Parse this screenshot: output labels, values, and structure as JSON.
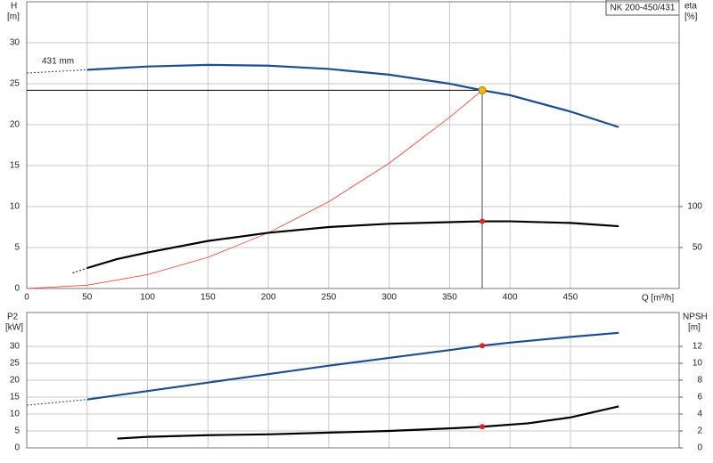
{
  "chart_data": [
    {
      "type": "line",
      "title": "NK 200-450/431",
      "annotation": "431 mm",
      "ylabel": [
        "H",
        "[m]"
      ],
      "y2label": [
        "eta",
        "[%]"
      ],
      "xlabel": "Q [m³/h]",
      "xlim": [
        0,
        540
      ],
      "xticks": [
        0,
        50,
        100,
        150,
        200,
        250,
        300,
        350,
        400,
        450
      ],
      "ylim": [
        0,
        35
      ],
      "yticks": [
        0,
        5,
        10,
        15,
        20,
        25,
        30
      ],
      "y2lim": [
        0,
        350
      ],
      "y2ticks": [
        50,
        100
      ],
      "grid": true,
      "series": [
        {
          "x": [
            0,
            50
          ],
          "values": [
            26.3,
            26.7
          ],
          "color": "#1f4e8c",
          "style": "dotted"
        },
        {
          "x": [
            50,
            100,
            150,
            200,
            250,
            300,
            350,
            377,
            400,
            450,
            490
          ],
          "values": [
            26.7,
            27.1,
            27.3,
            27.2,
            26.8,
            26.1,
            25.0,
            24.2,
            23.6,
            21.6,
            19.7
          ],
          "color": "#1f4e8c",
          "style": "solid"
        },
        {
          "x": [
            0,
            50,
            100,
            150,
            200,
            250,
            300,
            350,
            377
          ],
          "values": [
            0,
            0.4,
            1.7,
            3.8,
            6.8,
            10.6,
            15.3,
            20.9,
            24.2
          ],
          "color": "#ff3b30",
          "style": "thin"
        },
        {
          "x": [
            38,
            50
          ],
          "values": [
            19,
            25
          ],
          "color": "#000000",
          "style": "dotted",
          "axis": "y2"
        },
        {
          "x": [
            50,
            75,
            100,
            150,
            200,
            250,
            300,
            350,
            377,
            400,
            450,
            490
          ],
          "values": [
            25,
            36,
            44,
            58,
            68,
            75,
            79,
            81,
            82,
            82,
            80,
            76
          ],
          "color": "#000000",
          "style": "solid",
          "axis": "y2"
        }
      ],
      "points": [
        {
          "x": 377,
          "y": 24.2,
          "color": "#f5b800",
          "guides": true
        },
        {
          "x": 377,
          "y": 82,
          "color": "#e8201c",
          "axis": "y2"
        }
      ]
    },
    {
      "type": "line",
      "ylabel": [
        "P2",
        "[kW]"
      ],
      "y2label": [
        "NPSH",
        "[m]"
      ],
      "xlim": [
        0,
        540
      ],
      "ylim": [
        0,
        40
      ],
      "yticks": [
        0,
        5,
        10,
        15,
        20,
        25,
        30
      ],
      "y2lim": [
        0,
        16
      ],
      "y2ticks": [
        0,
        2,
        4,
        6,
        8,
        10,
        12
      ],
      "grid": true,
      "series": [
        {
          "x": [
            0,
            50
          ],
          "values": [
            12.6,
            14.3
          ],
          "color": "#1f4e8c",
          "style": "dotted"
        },
        {
          "x": [
            50,
            100,
            150,
            200,
            250,
            300,
            350,
            377,
            400,
            450,
            490
          ],
          "values": [
            14.3,
            16.8,
            19.3,
            21.8,
            24.3,
            26.6,
            28.9,
            30.2,
            31.1,
            32.8,
            34.0
          ],
          "color": "#1f4e8c",
          "style": "solid"
        },
        {
          "x": [
            75,
            100,
            150,
            200,
            250,
            300,
            350,
            377,
            415,
            450,
            490
          ],
          "values": [
            1.1,
            1.3,
            1.5,
            1.6,
            1.8,
            2.0,
            2.3,
            2.5,
            2.9,
            3.6,
            4.9
          ],
          "color": "#000000",
          "style": "solid",
          "axis": "y2"
        }
      ],
      "points": [
        {
          "x": 377,
          "y": 30.2,
          "color": "#e8201c"
        },
        {
          "x": 377,
          "y": 2.5,
          "color": "#e8201c",
          "axis": "y2"
        }
      ]
    }
  ]
}
